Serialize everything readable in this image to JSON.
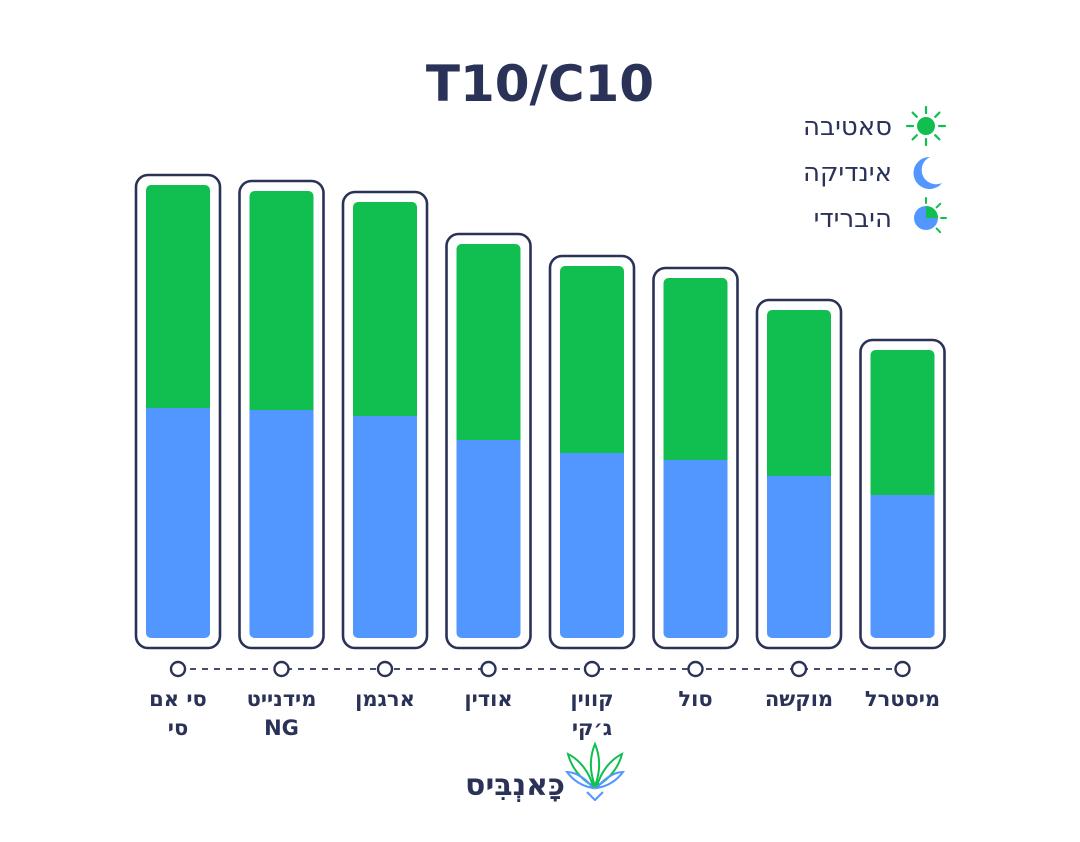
{
  "chart_data": {
    "type": "bar",
    "stacked": true,
    "title": "T10/C10",
    "categories": [
      [
        "סי אם",
        "סי"
      ],
      [
        "מידנייט",
        "NG"
      ],
      [
        "ארגמן"
      ],
      [
        "אודין"
      ],
      [
        "קווין",
        "ג׳קי"
      ],
      [
        "סול"
      ],
      [
        "מוקשה"
      ],
      [
        "מיסטרל"
      ]
    ],
    "series": [
      {
        "name": "אינדיקה",
        "color": "#5197ff",
        "values": [
          230,
          228,
          222,
          198,
          185,
          178,
          162,
          143
        ]
      },
      {
        "name": "סאטיבה",
        "color": "#10bf4f",
        "values": [
          223,
          219,
          214,
          196,
          187,
          182,
          166,
          145
        ]
      }
    ],
    "ylim": [
      0,
      470
    ],
    "grid": false,
    "legend_position": "top-right"
  },
  "legend": [
    {
      "label": "סאטיבה",
      "icon": "sun-icon",
      "color": "#10bf4f"
    },
    {
      "label": "אינדיקה",
      "icon": "moon-icon",
      "color": "#5197ff"
    },
    {
      "label": "היברידי",
      "icon": "hybrid-icon",
      "color": "#5197ff"
    }
  ],
  "brand": {
    "name": "כָּאנְבִּיס",
    "icon": "cannabis-leaf-icon"
  },
  "colors": {
    "text": "#2b3257",
    "frame": "#2b3257",
    "sativa": "#10bf4f",
    "indica": "#5197ff"
  }
}
